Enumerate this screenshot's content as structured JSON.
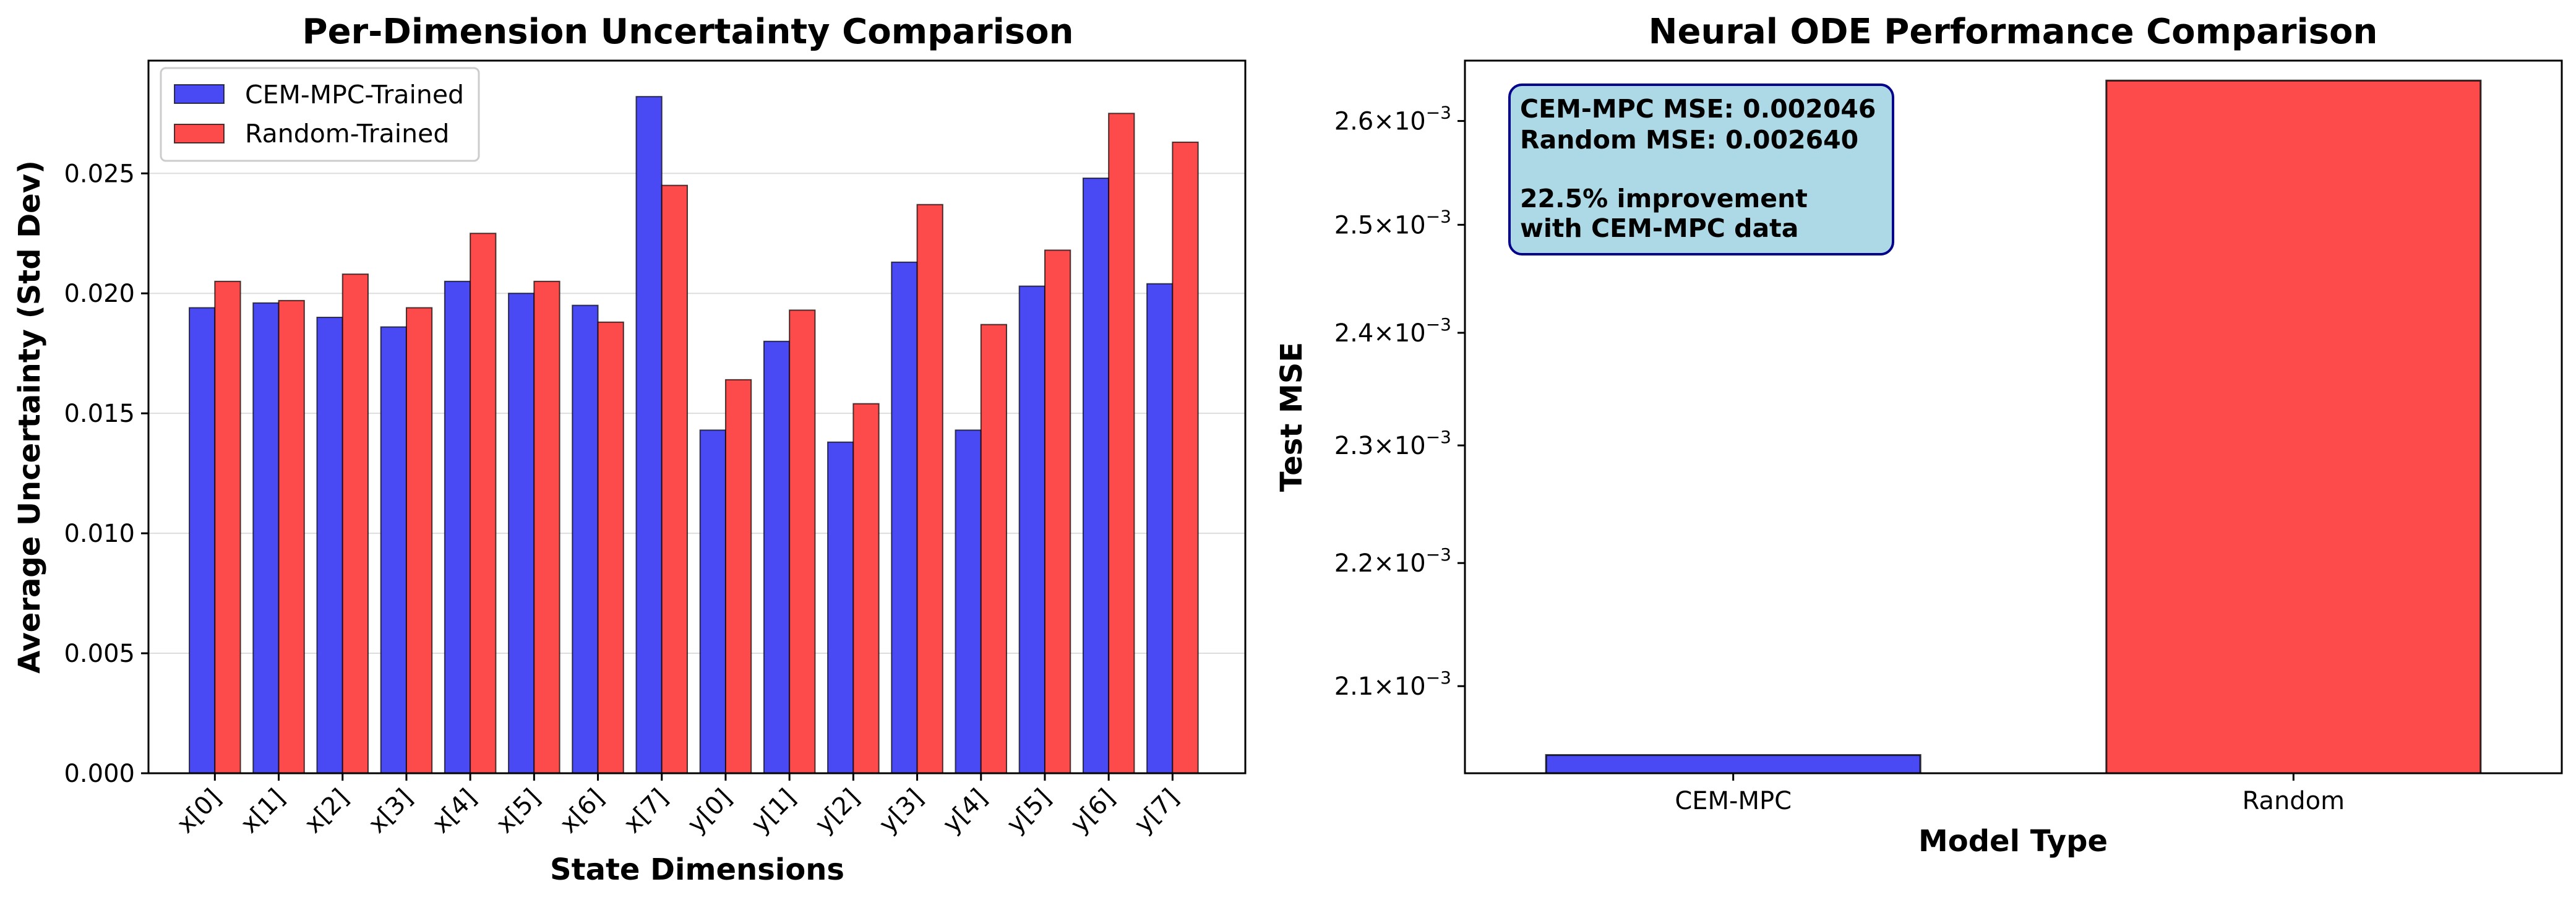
{
  "chart_data": [
    {
      "type": "bar",
      "title": "Per-Dimension Uncertainty Comparison",
      "xlabel": "State Dimensions",
      "ylabel": "Average Uncertainty (Std Dev)",
      "categories": [
        "x[0]",
        "x[1]",
        "x[2]",
        "x[3]",
        "x[4]",
        "x[5]",
        "x[6]",
        "x[7]",
        "y[0]",
        "y[1]",
        "y[2]",
        "y[3]",
        "y[4]",
        "y[5]",
        "y[6]",
        "y[7]"
      ],
      "series": [
        {
          "name": "CEM-MPC-Trained",
          "color": "#4a4af5",
          "values": [
            0.0194,
            0.0196,
            0.019,
            0.0186,
            0.0205,
            0.02,
            0.0195,
            0.0282,
            0.0143,
            0.018,
            0.0138,
            0.0213,
            0.0143,
            0.0203,
            0.0248,
            0.0204
          ]
        },
        {
          "name": "Random-Trained",
          "color": "#fd4a4a",
          "values": [
            0.0205,
            0.0197,
            0.0208,
            0.0194,
            0.0225,
            0.0205,
            0.0188,
            0.0245,
            0.0164,
            0.0193,
            0.0154,
            0.0237,
            0.0187,
            0.0218,
            0.0275,
            0.0263
          ]
        }
      ],
      "ylim": [
        0,
        0.0297
      ],
      "yticks": [
        "0.000",
        "0.005",
        "0.010",
        "0.015",
        "0.020",
        "0.025"
      ],
      "ytick_values": [
        0,
        0.005,
        0.01,
        0.015,
        0.02,
        0.025
      ],
      "grid": "horizontal",
      "legend": "top-left"
    },
    {
      "type": "bar",
      "title": "Neural ODE Performance Comparison",
      "xlabel": "Model Type",
      "ylabel": "Test MSE",
      "yscale": "log",
      "categories": [
        "CEM-MPC",
        "Random"
      ],
      "values": [
        0.002046,
        0.00264
      ],
      "colors": [
        "#4a4af5",
        "#fd4a4a"
      ],
      "ylim": [
        0.002032,
        0.00266
      ],
      "ytick_values": [
        0.0021,
        0.0022,
        0.0023,
        0.0024,
        0.0025,
        0.0026
      ],
      "yticks": [
        {
          "mantissa": "2.1",
          "sep": "×",
          "base": "10",
          "exp": "−3"
        },
        {
          "mantissa": "2.2",
          "sep": "×",
          "base": "10",
          "exp": "−3"
        },
        {
          "mantissa": "2.3",
          "sep": "×",
          "base": "10",
          "exp": "−3"
        },
        {
          "mantissa": "2.4",
          "sep": "×",
          "base": "10",
          "exp": "−3"
        },
        {
          "mantissa": "2.5",
          "sep": "×",
          "base": "10",
          "exp": "−3"
        },
        {
          "mantissa": "2.6",
          "sep": "×",
          "base": "10",
          "exp": "−3"
        }
      ],
      "grid": "none",
      "annotation": [
        "CEM-MPC MSE: 0.002046",
        "Random MSE: 0.002640",
        "",
        "22.5% improvement",
        "with CEM-MPC data"
      ],
      "annotation_bg": "#add8e6",
      "annotation_border": "#00008b"
    }
  ]
}
